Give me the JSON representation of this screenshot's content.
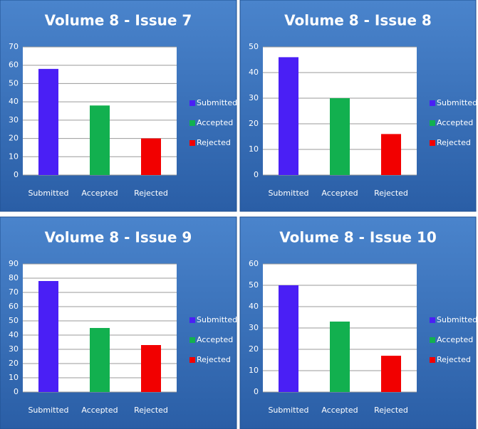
{
  "chart_data": [
    {
      "type": "bar",
      "title": "Volume 8 - Issue 7",
      "categories": [
        "Submitted",
        "Accepted",
        "Rejected"
      ],
      "values": [
        58,
        38,
        20
      ],
      "colors": [
        "#4a1ff5",
        "#12b04f",
        "#f20000"
      ],
      "ylim": [
        0,
        70
      ],
      "yticks": [
        0,
        10,
        20,
        30,
        40,
        50,
        60,
        70
      ],
      "grid": true,
      "legend": "right"
    },
    {
      "type": "bar",
      "title": "Volume 8 - Issue 8",
      "categories": [
        "Submitted",
        "Accepted",
        "Rejected"
      ],
      "values": [
        46,
        30,
        16
      ],
      "colors": [
        "#4a1ff5",
        "#12b04f",
        "#f20000"
      ],
      "ylim": [
        0,
        50
      ],
      "yticks": [
        0,
        10,
        20,
        30,
        40,
        50
      ],
      "grid": true,
      "legend": "right"
    },
    {
      "type": "bar",
      "title": "Volume 8 - Issue 9",
      "categories": [
        "Submitted",
        "Accepted",
        "Rejected"
      ],
      "values": [
        78,
        45,
        33
      ],
      "colors": [
        "#4a1ff5",
        "#12b04f",
        "#f20000"
      ],
      "ylim": [
        0,
        90
      ],
      "yticks": [
        0,
        10,
        20,
        30,
        40,
        50,
        60,
        70,
        80,
        90
      ],
      "grid": true,
      "legend": "right"
    },
    {
      "type": "bar",
      "title": "Volume 8 - Issue 10",
      "categories": [
        "Submitted",
        "Accepted",
        "Rejected"
      ],
      "values": [
        50,
        33,
        17
      ],
      "colors": [
        "#4a1ff5",
        "#12b04f",
        "#f20000"
      ],
      "ylim": [
        0,
        60
      ],
      "yticks": [
        0,
        10,
        20,
        30,
        40,
        50,
        60
      ],
      "grid": true,
      "legend": "right"
    }
  ]
}
